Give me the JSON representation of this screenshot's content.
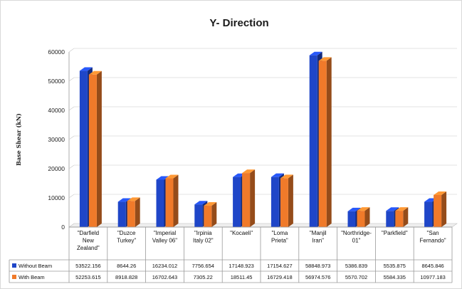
{
  "chart_data": {
    "type": "bar",
    "title": "Y- Direction",
    "xlabel": "",
    "ylabel": "Base Shear (kN)",
    "ylim": [
      0,
      60000
    ],
    "yticks": [
      0,
      10000,
      20000,
      30000,
      40000,
      50000,
      60000
    ],
    "ytick_labels": [
      "0",
      "10000",
      "20000",
      "30000",
      "40000",
      "50000",
      "60000"
    ],
    "grid": true,
    "legend": "data-table",
    "categories": [
      "\"Darfield New Zealand\"",
      "\"Duzce Turkey\"",
      "\"Imperial Valley 06\"",
      "\"Irpinia Italy 02\"",
      "\"Kocaeli\"",
      "\"Loma Prieta\"",
      "\"Manjil Iran\"",
      "\"Northridge-01\"",
      "\"Parkfield\"",
      "\"San Fernando\""
    ],
    "category_lines": [
      [
        "\"Darfield",
        "New",
        "Zealand\""
      ],
      [
        "\"Duzce",
        "Turkey\""
      ],
      [
        "\"Imperial",
        "Valley 06\""
      ],
      [
        "\"Irpinia",
        "Italy 02\""
      ],
      [
        "\"Kocaeli\""
      ],
      [
        "\"Loma",
        "Prieta\""
      ],
      [
        "\"Manjil",
        "Iran\""
      ],
      [
        "\"Northridge-",
        "01\""
      ],
      [
        "\"Parkfield\""
      ],
      [
        "\"San",
        "Fernando\""
      ]
    ],
    "series": [
      {
        "name": "Without Beam",
        "color": "#1f46c8",
        "values": [
          53522.156,
          8644.26,
          16234.012,
          7756.654,
          17148.923,
          17154.627,
          58848.973,
          5386.839,
          5535.875,
          8645.846
        ],
        "labels": [
          "53522.156",
          "8644.26",
          "16234.012",
          "7756.654",
          "17148.923",
          "17154.627",
          "58848.973",
          "5386.839",
          "5535.875",
          "8645.846"
        ]
      },
      {
        "name": "With Beam",
        "color": "#f07a2a",
        "values": [
          52253.615,
          8918.828,
          16702.643,
          7305.22,
          18511.45,
          16729.418,
          56974.576,
          5570.702,
          5584.335,
          10977.183
        ],
        "labels": [
          "52253.615",
          "8918.828",
          "16702.643",
          "7305.22",
          "18511.45",
          "16729.418",
          "56974.576",
          "5570.702",
          "5584.335",
          "10977.183"
        ]
      }
    ]
  }
}
